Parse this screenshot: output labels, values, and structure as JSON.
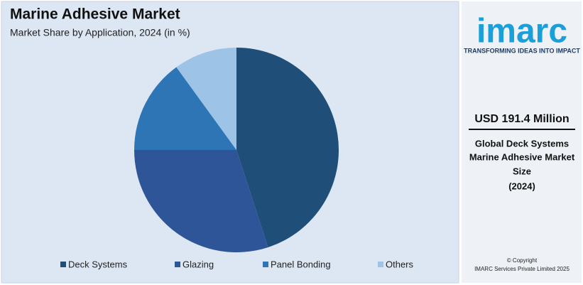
{
  "chart_data": {
    "type": "pie",
    "title": "Marine Adhesive Market",
    "subtitle": "Market Share by Application, 2024 (in %)",
    "categories": [
      "Deck Systems",
      "Glazing",
      "Panel Bonding",
      "Others"
    ],
    "values": [
      45,
      30,
      15,
      10
    ],
    "colors": [
      "#1f4e79",
      "#2e5597",
      "#2e75b6",
      "#9dc3e6"
    ]
  },
  "sidebar": {
    "logo": "imarc",
    "tagline": "TRANSFORMING IDEAS INTO IMPACT",
    "headline": "USD 191.4 Million",
    "description": [
      "Global Deck Systems",
      "Marine Adhesive Market",
      "Size",
      "(2024)"
    ],
    "copyright": "© Copyright",
    "company": "IMARC Services Private Limited 2025"
  }
}
